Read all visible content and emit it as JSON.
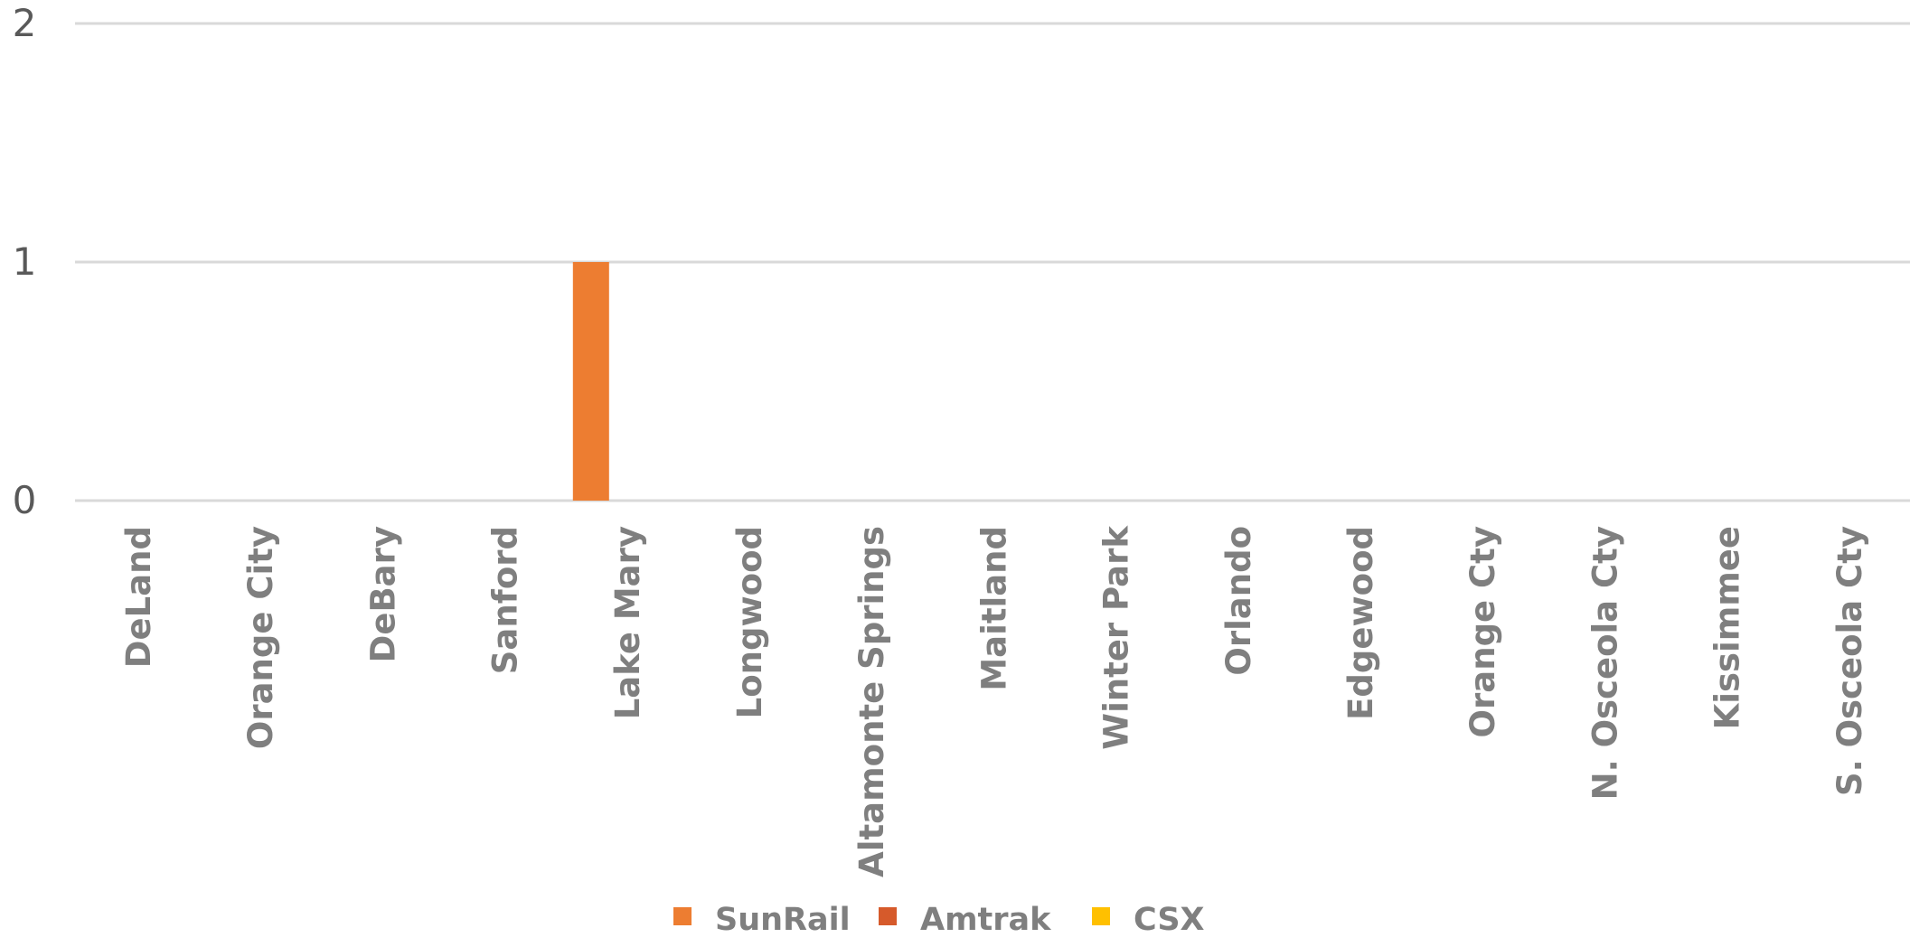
{
  "chart_data": {
    "type": "bar",
    "title": "",
    "xlabel": "",
    "ylabel": "",
    "ylim": [
      0,
      2
    ],
    "yticks": [
      0,
      1,
      2
    ],
    "grid": true,
    "legend_position": "bottom",
    "categories": [
      "DeLand",
      "Orange City",
      "DeBary",
      "Sanford",
      "Lake Mary",
      "Longwood",
      "Altamonte Springs",
      "Maitland",
      "Winter Park",
      "Orlando",
      "Edgewood",
      "Orange Cty",
      "N. Osceola Cty",
      "Kissimmee",
      "S. Osceola Cty"
    ],
    "series": [
      {
        "name": "SunRail",
        "color": "#ED7D31",
        "values": [
          0,
          0,
          0,
          0,
          1,
          0,
          0,
          0,
          0,
          0,
          0,
          0,
          0,
          0,
          0
        ]
      },
      {
        "name": "Amtrak",
        "color": "#D65A2B",
        "values": [
          0,
          0,
          0,
          0,
          0,
          0,
          0,
          0,
          0,
          0,
          0,
          0,
          0,
          0,
          0
        ]
      },
      {
        "name": "CSX",
        "color": "#FFC000",
        "values": [
          0,
          0,
          0,
          0,
          0,
          0,
          0,
          0,
          0,
          0,
          0,
          0,
          0,
          0,
          0
        ]
      }
    ]
  }
}
